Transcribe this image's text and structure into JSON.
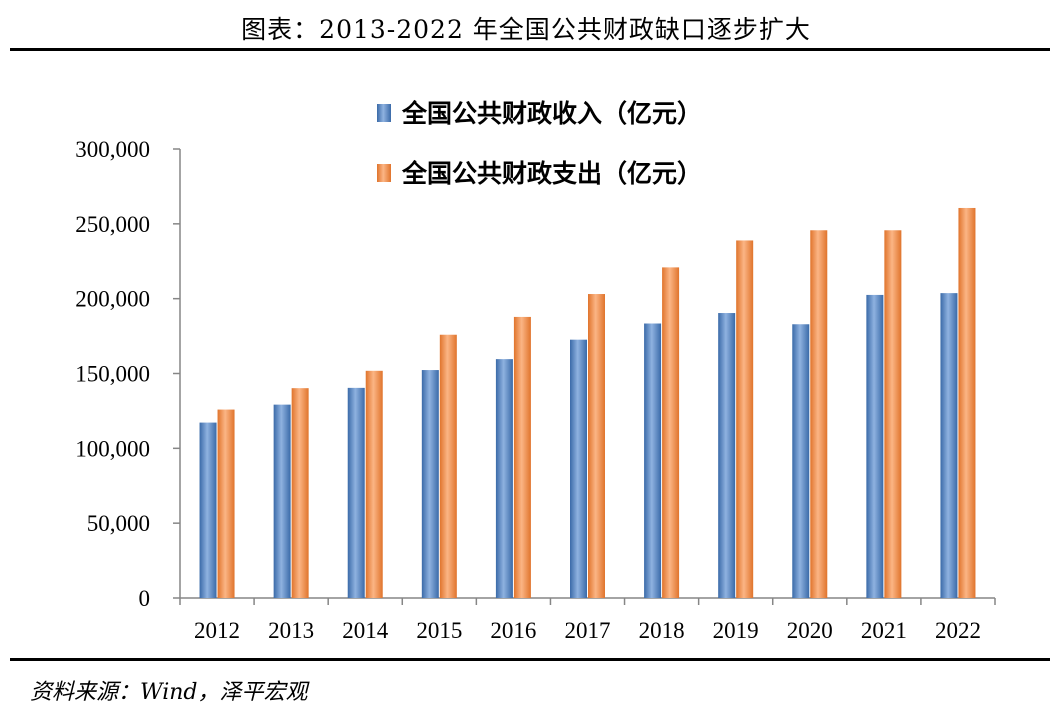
{
  "page": {
    "title": "图表：2013-2022 年全国公共财政缺口逐步扩大",
    "source": "资料来源：Wind，泽平宏观"
  },
  "chart_data": {
    "type": "bar",
    "categories": [
      "2012",
      "2013",
      "2014",
      "2015",
      "2016",
      "2017",
      "2018",
      "2019",
      "2020",
      "2021",
      "2022"
    ],
    "series": [
      {
        "name": "全国公共财政收入（亿元）",
        "color": "#4F81BD",
        "values": [
          117200,
          129200,
          140400,
          152300,
          159600,
          172600,
          183400,
          190400,
          182900,
          202500,
          203700
        ]
      },
      {
        "name": "全国公共财政支出（亿元）",
        "color": "#F79646",
        "values": [
          125900,
          140200,
          151800,
          175900,
          187800,
          203100,
          220900,
          238900,
          245700,
          245700,
          260600
        ]
      }
    ],
    "ylim": [
      0,
      300000
    ],
    "yticks": [
      0,
      50000,
      100000,
      150000,
      200000,
      250000,
      300000
    ],
    "ytick_labels": [
      "0",
      "50,000",
      "100,000",
      "150,000",
      "200,000",
      "250,000",
      "300,000"
    ],
    "legend_position": "top-center",
    "grid": false
  }
}
